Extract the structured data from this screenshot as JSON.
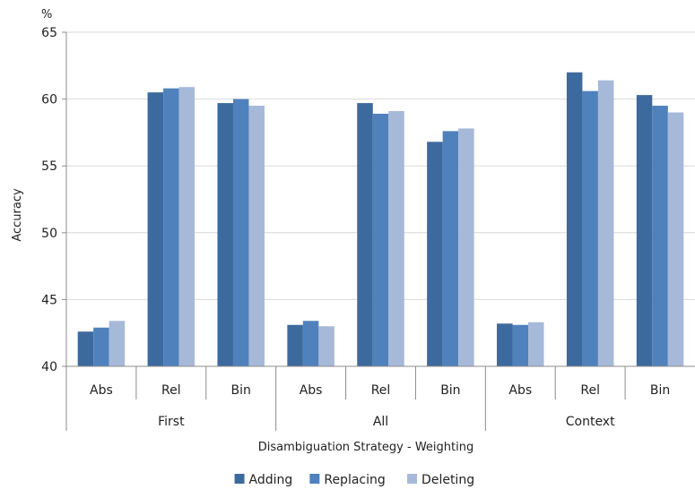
{
  "chart_data": {
    "type": "bar",
    "ylabel": "Accuracy",
    "yunit": "%",
    "xlabel": "Disambiguation Strategy - Weighting",
    "ylim": [
      40,
      65
    ],
    "yticks": [
      40,
      45,
      50,
      55,
      60,
      65
    ],
    "grid": true,
    "legend_position": "bottom",
    "groups": [
      {
        "name": "First",
        "categories": [
          "Abs",
          "Rel",
          "Bin"
        ]
      },
      {
        "name": "All",
        "categories": [
          "Abs",
          "Rel",
          "Bin"
        ]
      },
      {
        "name": "Context",
        "categories": [
          "Abs",
          "Rel",
          "Bin"
        ]
      }
    ],
    "series": [
      {
        "name": "Adding",
        "color": "#3d6a9e",
        "values": [
          42.6,
          60.5,
          59.7,
          43.1,
          59.7,
          56.8,
          43.2,
          62.0,
          60.3
        ]
      },
      {
        "name": "Replacing",
        "color": "#4f81bd",
        "values": [
          42.9,
          60.8,
          60.0,
          43.4,
          58.9,
          57.6,
          43.1,
          60.6,
          59.5
        ]
      },
      {
        "name": "Deleting",
        "color": "#a7b9d9",
        "values": [
          43.4,
          60.9,
          59.5,
          43.0,
          59.1,
          57.8,
          43.3,
          61.4,
          59.0
        ]
      }
    ]
  }
}
